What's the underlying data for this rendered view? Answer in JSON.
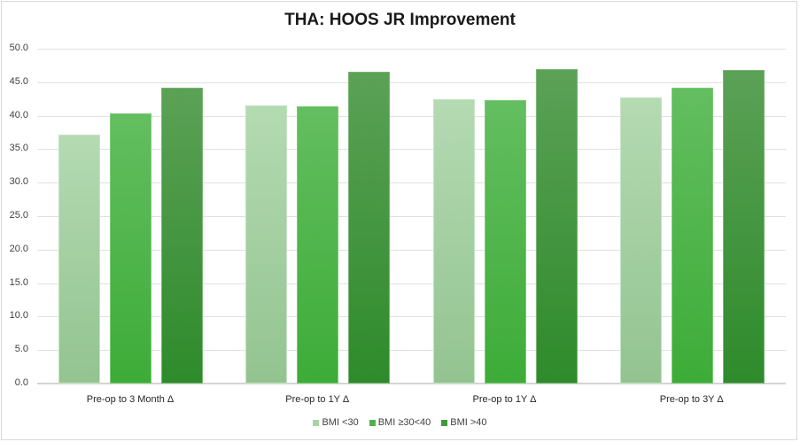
{
  "chart_data": {
    "type": "bar",
    "title": "THA: HOOS JR Improvement",
    "xlabel": "",
    "ylabel": "",
    "ylim": [
      0,
      50
    ],
    "yticks": [
      "0.0",
      "5.0",
      "10.0",
      "15.0",
      "20.0",
      "25.0",
      "30.0",
      "35.0",
      "40.0",
      "45.0",
      "50.0"
    ],
    "grid": true,
    "legend_position": "bottom",
    "categories": [
      "Pre-op to 3 Month Δ",
      "Pre-op to 1Y Δ",
      "Pre-op to 1Y Δ",
      "Pre-op to 3Y Δ"
    ],
    "series": [
      {
        "name": "BMI <30",
        "color": "#a8d3a5",
        "values": [
          37.2,
          41.5,
          42.5,
          42.7
        ]
      },
      {
        "name": "BMI ≥30<40",
        "color": "#4db449",
        "values": [
          40.3,
          41.4,
          42.3,
          44.2
        ]
      },
      {
        "name": "BMI >40",
        "color": "#3f9a3b",
        "values": [
          44.2,
          46.6,
          47.0,
          46.8
        ]
      }
    ]
  }
}
